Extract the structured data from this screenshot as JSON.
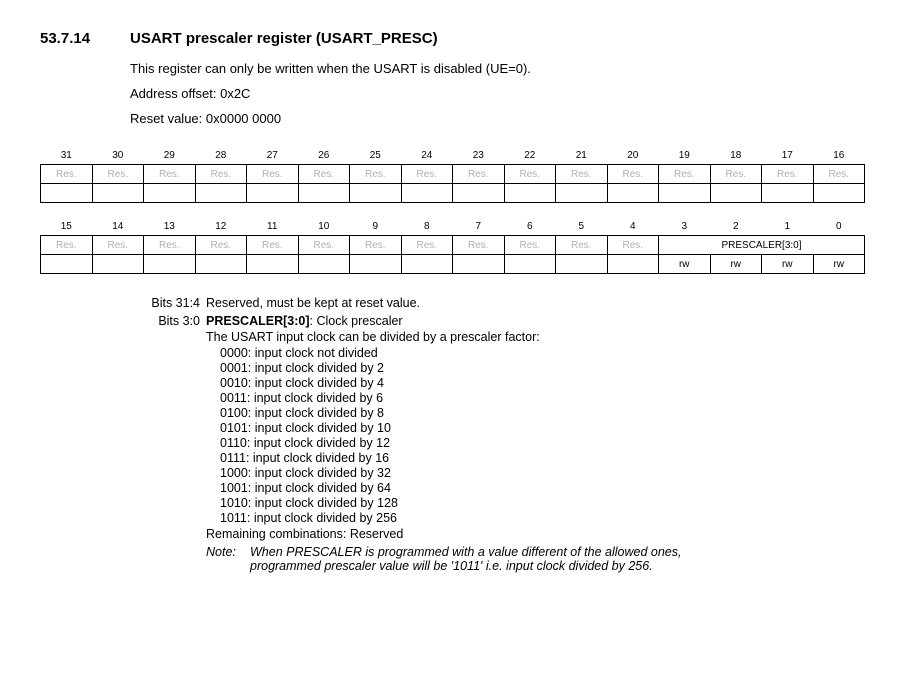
{
  "section": {
    "number": "53.7.14",
    "title": "USART prescaler register (USART_PRESC)"
  },
  "intro": {
    "line1": "This register can only be written when the USART is disabled (UE=0).",
    "line2": "Address offset: 0x2C",
    "line3": "Reset value: 0x0000 0000"
  },
  "regtable": {
    "high_bits": [
      "31",
      "30",
      "29",
      "28",
      "27",
      "26",
      "25",
      "24",
      "23",
      "22",
      "21",
      "20",
      "19",
      "18",
      "17",
      "16"
    ],
    "high_cells": [
      "Res.",
      "Res.",
      "Res.",
      "Res.",
      "Res.",
      "Res.",
      "Res.",
      "Res.",
      "Res.",
      "Res.",
      "Res.",
      "Res.",
      "Res.",
      "Res.",
      "Res.",
      "Res."
    ],
    "low_bits": [
      "15",
      "14",
      "13",
      "12",
      "11",
      "10",
      "9",
      "8",
      "7",
      "6",
      "5",
      "4",
      "3",
      "2",
      "1",
      "0"
    ],
    "low_res": [
      "Res.",
      "Res.",
      "Res.",
      "Res.",
      "Res.",
      "Res.",
      "Res.",
      "Res.",
      "Res.",
      "Res.",
      "Res.",
      "Res."
    ],
    "low_field": "PRESCALER[3:0]",
    "rw": "rw"
  },
  "field_reserved": {
    "bits": "Bits 31:4",
    "text": "Reserved, must be kept at reset value."
  },
  "field_prescaler": {
    "bits": "Bits 3:0",
    "name": "PRESCALER[3:0]",
    "caption": ": Clock prescaler",
    "desc": "The USART input clock can be divided by a prescaler factor:",
    "enums": [
      "0000: input clock not divided",
      "0001: input clock divided by 2",
      "0010: input clock divided by 4",
      "0011: input clock divided by 6",
      "0100: input clock divided by 8",
      "0101: input clock divided by 10",
      "0110: input clock divided by 12",
      "0111: input clock divided by 16",
      "1000: input clock divided by 32",
      "1001: input clock divided by 64",
      "1010: input clock divided by 128",
      "1011: input clock divided by 256"
    ],
    "remaining": "Remaining combinations: Reserved",
    "note_label": "Note:",
    "note_text1": "When PRESCALER is programmed with a value different of the allowed ones,",
    "note_text2": "programmed prescaler value will be '1011' i.e. input clock divided by 256."
  }
}
